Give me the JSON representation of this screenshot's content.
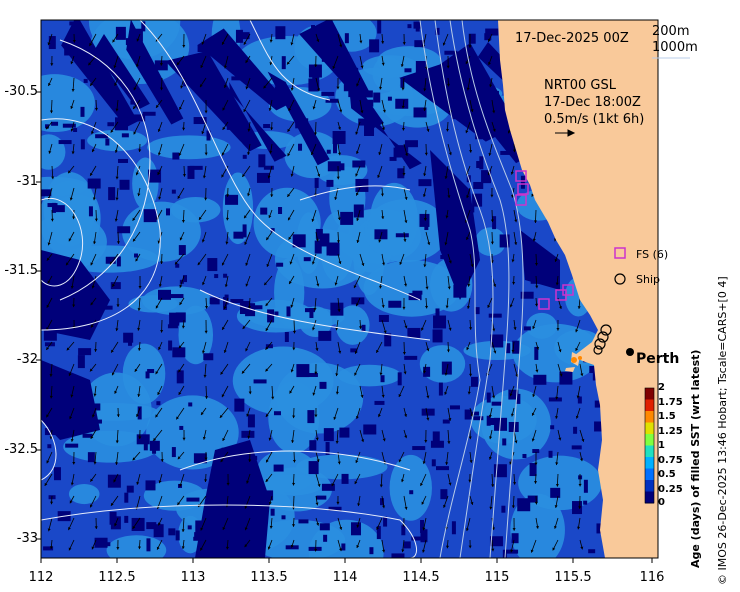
{
  "header": {
    "date": "17-Dec-2025 00Z",
    "isobath_200": "200m",
    "isobath_1000": "1000m"
  },
  "currents": {
    "product": "NRT00 GSL",
    "time": "17-Dec 18:00Z",
    "scale": "0.5m/s (1kt 6h)"
  },
  "legend": {
    "fs_label": "FS (6)",
    "ship_label": "Ship"
  },
  "city": "Perth",
  "colorbar": {
    "title": "Age (days) of filled SST (wrt latest)",
    "ticks": [
      "2",
      "1.75",
      "1.5",
      "1.25",
      "1",
      "0.75",
      "0.5",
      "0.25",
      "0"
    ]
  },
  "credit": "© IMOS 26-Dec-2025 13:46 Hobart; Tscale=CARS+[0 4]",
  "axes": {
    "lat_ticks": [
      "-30.5",
      "-31",
      "-31.5",
      "-32",
      "-32.5",
      "-33"
    ],
    "lon_ticks": [
      "112",
      "112.5",
      "113",
      "113.5",
      "114",
      "114.5",
      "115",
      "115.5",
      "116"
    ]
  },
  "colors": {
    "land": "#f9c99a",
    "sst_deep": "#00007a",
    "sst_mid": "#1a48c8",
    "sst_light": "#2a8fe0",
    "fs_marker": "#cc33cc"
  }
}
